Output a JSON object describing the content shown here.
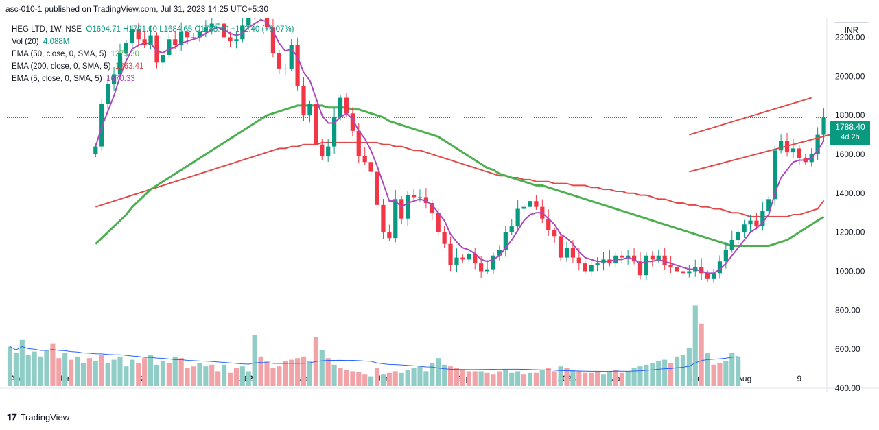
{
  "caption": "asc-010-1 published on TradingView.com, Jul 31, 2023 14:25 UTC+5:30",
  "legend": {
    "symbol": "HEG LTD, 1W, NSE",
    "ohlc": "O1694.71 H1791.00 L1684.65 C1788.40 +102.40 (+6.07%)",
    "vol": {
      "label": "Vol (20)",
      "value": "4.088M"
    },
    "ema50": {
      "label": "EMA (50, close, 0, SMA, 5)",
      "value": "1279.30"
    },
    "ema200": {
      "label": "EMA (200, close, 0, SMA, 5)",
      "value": "1363.41"
    },
    "ema5": {
      "label": "EMA (5, close, 0, SMA, 5)",
      "value": "1670.33"
    }
  },
  "currency": "INR",
  "last_price": {
    "value": "1788.40",
    "countdown": "4d 2h"
  },
  "footer": {
    "logo_text": "TradingView",
    "logo_icon": "tradingview-logo-icon"
  },
  "colors": {
    "up": "#089981",
    "down": "#f23645",
    "up_vol": "#90cdc7",
    "down_vol": "#f2a3a8",
    "ema5": "#ab47bc",
    "ema50": "#4caf50",
    "ema200": "#e04a4a",
    "vol_ma": "#2962ff",
    "trendline": "#e04a4a"
  },
  "chart_data": {
    "type": "candlestick",
    "title": "HEG LTD, 1W, NSE",
    "ylim": [
      400,
      2300
    ],
    "y_ticks": [
      "2200.00",
      "2000.00",
      "1800.00",
      "1600.00",
      "1400.00",
      "1200.00",
      "1000.00",
      "800.00",
      "600.00",
      "400.00"
    ],
    "y_tick_values": [
      2200,
      2000,
      1800,
      1600,
      1400,
      1200,
      1000,
      800,
      600,
      400
    ],
    "x_labels": [
      {
        "label": "Apr",
        "week": 0
      },
      {
        "label": "Jun",
        "week": 9
      },
      {
        "label": "Sep",
        "week": 22
      },
      {
        "label": "2022",
        "week": 39
      },
      {
        "label": "Mar",
        "week": 48
      },
      {
        "label": "Jun",
        "week": 61
      },
      {
        "label": "Sep",
        "week": 74
      },
      {
        "label": "2023",
        "week": 91
      },
      {
        "label": "Mar",
        "week": 99
      },
      {
        "label": "Jun",
        "week": 112
      },
      {
        "label": "Aug",
        "week": 120
      },
      {
        "label": "9",
        "week": 129
      }
    ],
    "total_weeks": 134,
    "closes": [
      1640,
      1860,
      1960,
      2010,
      2120,
      2170,
      2240,
      2190,
      2160,
      2210,
      2070,
      2110,
      2190,
      2160,
      2230,
      2200,
      2200,
      2230,
      2250,
      2270,
      2270,
      2200,
      2180,
      2190,
      2260,
      2330,
      2320,
      2340,
      2250,
      2120,
      2040,
      2040,
      2160,
      1950,
      1800,
      1860,
      1650,
      1590,
      1640,
      1790,
      1890,
      1810,
      1720,
      1590,
      1560,
      1510,
      1340,
      1200,
      1170,
      1370,
      1270,
      1390,
      1380,
      1380,
      1350,
      1300,
      1200,
      1140,
      1030,
      1070,
      1060,
      1090,
      1040,
      1000,
      1010,
      1080,
      1110,
      1200,
      1230,
      1320,
      1330,
      1360,
      1330,
      1270,
      1210,
      1180,
      1070,
      1120,
      1070,
      1040,
      1000,
      1030,
      1040,
      1060,
      1040,
      1080,
      1070,
      1080,
      1050,
      980,
      1080,
      1060,
      1080,
      1030,
      1020,
      1000,
      990,
      1000,
      1020,
      990,
      960,
      990,
      1050,
      1110,
      1160,
      1200,
      1240,
      1260,
      1230,
      1310,
      1370,
      1620,
      1670,
      1610,
      1630,
      1580,
      1560,
      1600,
      1700,
      1788
    ],
    "volumes": [
      120,
      100,
      140,
      95,
      105,
      90,
      110,
      130,
      85,
      100,
      80,
      90,
      70,
      85,
      75,
      95,
      70,
      80,
      90,
      60,
      80,
      70,
      85,
      95,
      65,
      75,
      70,
      90,
      85,
      55,
      60,
      70,
      60,
      65,
      45,
      65,
      40,
      55,
      60,
      45,
      155,
      90,
      75,
      55,
      60,
      75,
      80,
      85,
      90,
      75,
      150,
      110,
      85,
      65,
      55,
      50,
      45,
      42,
      35,
      30,
      55,
      35,
      40,
      45,
      40,
      50,
      55,
      60,
      45,
      70,
      85,
      65,
      60,
      55,
      50,
      45,
      45,
      45,
      40,
      35,
      45,
      50,
      40,
      45,
      35,
      40,
      40,
      50,
      55,
      45,
      60,
      55,
      50,
      45,
      40,
      40,
      45,
      35,
      45,
      50,
      40,
      45,
      55,
      60,
      65,
      70,
      75,
      80,
      70,
      90,
      95,
      115,
      245,
      190,
      100,
      65,
      70,
      75,
      100,
      90
    ],
    "ema5": [
      1640,
      1740,
      1820,
      1900,
      2000,
      2080,
      2140,
      2160,
      2170,
      2170,
      2130,
      2120,
      2140,
      2150,
      2170,
      2180,
      2190,
      2200,
      2220,
      2240,
      2250,
      2240,
      2220,
      2210,
      2220,
      2250,
      2270,
      2290,
      2280,
      2230,
      2170,
      2130,
      2140,
      2100,
      2020,
      1980,
      1890,
      1800,
      1760,
      1760,
      1790,
      1810,
      1780,
      1720,
      1680,
      1620,
      1540,
      1450,
      1360,
      1360,
      1330,
      1350,
      1360,
      1370,
      1360,
      1340,
      1300,
      1260,
      1190,
      1150,
      1120,
      1110,
      1090,
      1060,
      1050,
      1060,
      1080,
      1120,
      1160,
      1210,
      1260,
      1290,
      1300,
      1300,
      1270,
      1240,
      1190,
      1170,
      1140,
      1100,
      1070,
      1060,
      1050,
      1050,
      1050,
      1060,
      1060,
      1070,
      1060,
      1040,
      1050,
      1050,
      1060,
      1050,
      1040,
      1030,
      1020,
      1010,
      1010,
      1000,
      990,
      990,
      1010,
      1040,
      1080,
      1120,
      1160,
      1200,
      1220,
      1250,
      1290,
      1400,
      1480,
      1520,
      1560,
      1570,
      1570,
      1580,
      1620,
      1670
    ],
    "ema50": [
      1140,
      1170,
      1200,
      1230,
      1260,
      1290,
      1330,
      1360,
      1390,
      1420,
      1440,
      1460,
      1480,
      1500,
      1520,
      1540,
      1560,
      1580,
      1600,
      1620,
      1640,
      1660,
      1680,
      1700,
      1720,
      1740,
      1760,
      1780,
      1800,
      1810,
      1820,
      1830,
      1840,
      1850,
      1850,
      1850,
      1850,
      1850,
      1840,
      1840,
      1840,
      1840,
      1830,
      1830,
      1820,
      1810,
      1800,
      1790,
      1770,
      1760,
      1750,
      1740,
      1730,
      1720,
      1710,
      1700,
      1690,
      1670,
      1650,
      1630,
      1610,
      1590,
      1570,
      1550,
      1530,
      1520,
      1500,
      1490,
      1480,
      1470,
      1460,
      1450,
      1440,
      1440,
      1430,
      1420,
      1410,
      1400,
      1390,
      1380,
      1370,
      1360,
      1350,
      1340,
      1330,
      1320,
      1310,
      1300,
      1290,
      1280,
      1270,
      1260,
      1250,
      1240,
      1230,
      1220,
      1210,
      1200,
      1190,
      1180,
      1170,
      1160,
      1150,
      1140,
      1130,
      1130,
      1130,
      1130,
      1130,
      1130,
      1130,
      1140,
      1150,
      1160,
      1180,
      1200,
      1220,
      1240,
      1260,
      1279
    ],
    "ema200": [
      1330,
      1340,
      1350,
      1360,
      1370,
      1380,
      1390,
      1400,
      1410,
      1420,
      1430,
      1440,
      1450,
      1460,
      1470,
      1480,
      1490,
      1500,
      1510,
      1520,
      1530,
      1540,
      1550,
      1560,
      1570,
      1580,
      1590,
      1600,
      1610,
      1620,
      1630,
      1630,
      1640,
      1640,
      1650,
      1650,
      1650,
      1660,
      1660,
      1660,
      1660,
      1660,
      1660,
      1660,
      1660,
      1660,
      1660,
      1650,
      1650,
      1640,
      1640,
      1630,
      1620,
      1620,
      1610,
      1600,
      1590,
      1580,
      1570,
      1560,
      1550,
      1540,
      1530,
      1520,
      1510,
      1500,
      1490,
      1490,
      1480,
      1480,
      1470,
      1470,
      1460,
      1460,
      1460,
      1450,
      1450,
      1450,
      1440,
      1440,
      1440,
      1430,
      1430,
      1420,
      1420,
      1410,
      1410,
      1400,
      1400,
      1390,
      1390,
      1380,
      1370,
      1370,
      1360,
      1350,
      1350,
      1340,
      1340,
      1330,
      1330,
      1320,
      1320,
      1310,
      1300,
      1300,
      1290,
      1280,
      1280,
      1280,
      1280,
      1280,
      1280,
      1280,
      1290,
      1290,
      1300,
      1310,
      1320,
      1363
    ],
    "trendlines": [
      {
        "name": "upper",
        "points": [
          [
            111,
            1700
          ],
          [
            131,
            1890
          ]
        ]
      },
      {
        "name": "lower",
        "points": [
          [
            111,
            1510
          ],
          [
            134,
            1700
          ]
        ]
      }
    ]
  }
}
